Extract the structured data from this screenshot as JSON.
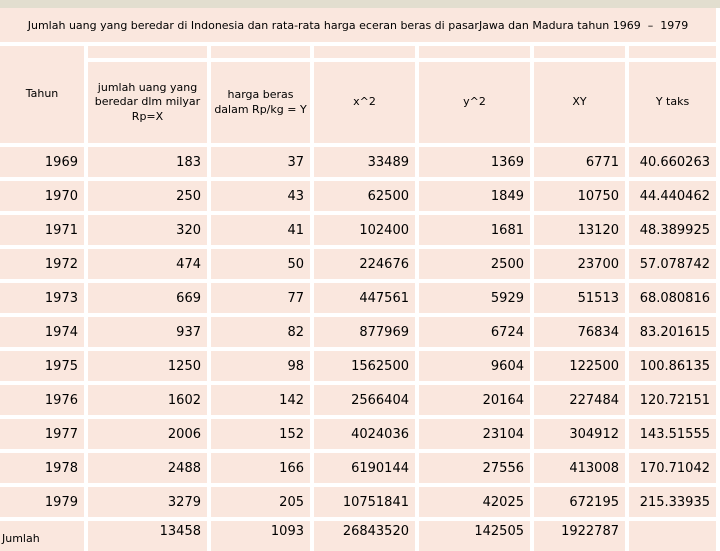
{
  "title": "Jumlah uang yang beredar di Indonesia dan rata-rata harga eceran beras di pasarJawa dan Madura tahun 1969  –  1979",
  "colors": {
    "cell_fill": "#fae7de",
    "grid_line": "#ffffff",
    "top_strip": "#e2decf",
    "text": "#000000"
  },
  "table": {
    "columns": [
      "Tahun",
      "jumlah uang yang beredar dlm milyar Rp=X",
      "harga beras dalam Rp/kg = Y",
      "x^2",
      "y^2",
      "XY",
      "Y taks"
    ],
    "rows": [
      {
        "cells": [
          "1969",
          "183",
          "37",
          "33489",
          "1369",
          "6771",
          "40.660263"
        ]
      },
      {
        "cells": [
          "1970",
          "250",
          "43",
          "62500",
          "1849",
          "10750",
          "44.440462"
        ]
      },
      {
        "cells": [
          "1971",
          "320",
          "41",
          "102400",
          "1681",
          "13120",
          "48.389925"
        ]
      },
      {
        "cells": [
          "1972",
          "474",
          "50",
          "224676",
          "2500",
          "23700",
          "57.078742"
        ]
      },
      {
        "cells": [
          "1973",
          "669",
          "77",
          "447561",
          "5929",
          "51513",
          "68.080816"
        ]
      },
      {
        "cells": [
          "1974",
          "937",
          "82",
          "877969",
          "6724",
          "76834",
          "83.201615"
        ]
      },
      {
        "cells": [
          "1975",
          "1250",
          "98",
          "1562500",
          "9604",
          "122500",
          "100.86135"
        ]
      },
      {
        "cells": [
          "1976",
          "1602",
          "142",
          "2566404",
          "20164",
          "227484",
          "120.72151"
        ]
      },
      {
        "cells": [
          "1977",
          "2006",
          "152",
          "4024036",
          "23104",
          "304912",
          "143.51555"
        ]
      },
      {
        "cells": [
          "1978",
          "2488",
          "166",
          "6190144",
          "27556",
          "413008",
          "170.71042"
        ]
      },
      {
        "cells": [
          "1979",
          "3279",
          "205",
          "10751841",
          "42025",
          "672195",
          "215.33935"
        ]
      }
    ],
    "total_row": {
      "label_align": "left",
      "cells": [
        "Jumlah",
        "13458",
        "1093",
        "26843520",
        "142505",
        "1922787",
        ""
      ]
    }
  }
}
